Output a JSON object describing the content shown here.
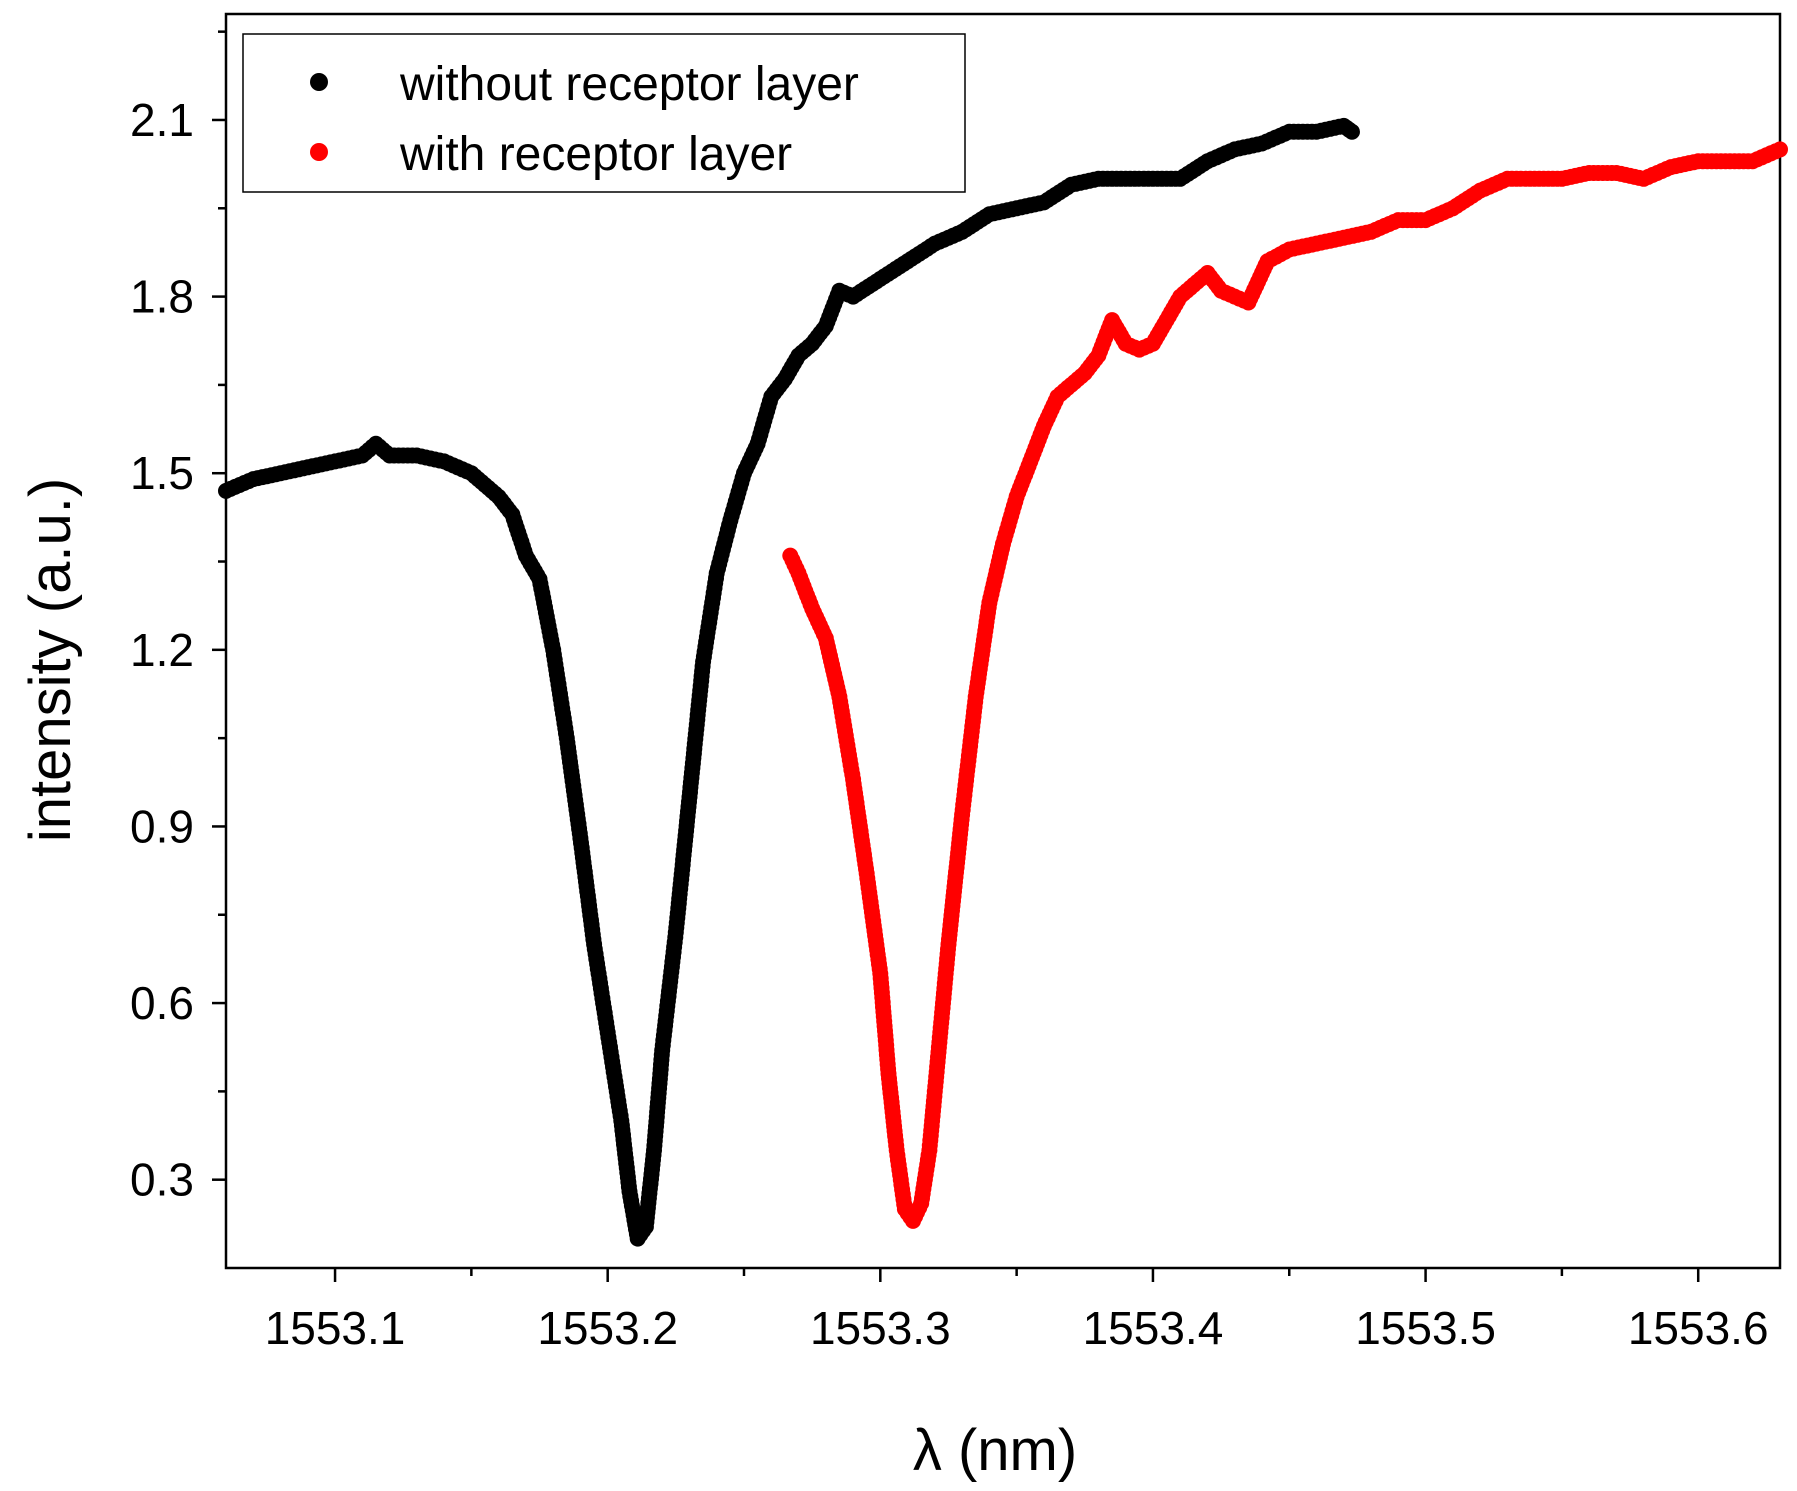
{
  "chart_data": {
    "type": "scatter",
    "xlabel": "λ (nm)",
    "ylabel": "intensity (a.u.)",
    "xlim": [
      1553.06,
      1553.63
    ],
    "ylim": [
      0.15,
      2.28
    ],
    "x_ticks": [
      1553.1,
      1553.2,
      1553.3,
      1553.4,
      1553.5,
      1553.6
    ],
    "x_tick_labels": [
      "1553.1",
      "1553.2",
      "1553.3",
      "1553.4",
      "1553.5",
      "1553.6"
    ],
    "y_ticks": [
      0.3,
      0.6,
      0.9,
      1.2,
      1.5,
      1.8,
      2.1
    ],
    "y_tick_labels": [
      "0.3",
      "0.6",
      "0.9",
      "1.2",
      "1.5",
      "1.8",
      "2.1"
    ],
    "grid": false,
    "legend_position": "top-left",
    "series": [
      {
        "name": "without receptor layer",
        "color": "#000000",
        "x": [
          1553.06,
          1553.07,
          1553.08,
          1553.09,
          1553.1,
          1553.11,
          1553.115,
          1553.12,
          1553.13,
          1553.14,
          1553.15,
          1553.16,
          1553.165,
          1553.17,
          1553.175,
          1553.18,
          1553.185,
          1553.19,
          1553.195,
          1553.2,
          1553.205,
          1553.208,
          1553.211,
          1553.214,
          1553.217,
          1553.22,
          1553.225,
          1553.23,
          1553.235,
          1553.24,
          1553.245,
          1553.25,
          1553.255,
          1553.26,
          1553.265,
          1553.27,
          1553.275,
          1553.28,
          1553.285,
          1553.29,
          1553.3,
          1553.31,
          1553.32,
          1553.33,
          1553.34,
          1553.35,
          1553.36,
          1553.37,
          1553.38,
          1553.39,
          1553.4,
          1553.41,
          1553.42,
          1553.43,
          1553.44,
          1553.45,
          1553.46,
          1553.47,
          1553.473
        ],
        "y": [
          1.47,
          1.49,
          1.5,
          1.51,
          1.52,
          1.53,
          1.55,
          1.53,
          1.53,
          1.52,
          1.5,
          1.46,
          1.43,
          1.36,
          1.32,
          1.2,
          1.05,
          0.88,
          0.7,
          0.55,
          0.4,
          0.28,
          0.2,
          0.22,
          0.35,
          0.52,
          0.72,
          0.95,
          1.18,
          1.33,
          1.42,
          1.5,
          1.55,
          1.63,
          1.66,
          1.7,
          1.72,
          1.75,
          1.81,
          1.8,
          1.83,
          1.86,
          1.89,
          1.91,
          1.94,
          1.95,
          1.96,
          1.99,
          2.0,
          2.0,
          2.0,
          2.0,
          2.03,
          2.05,
          2.06,
          2.08,
          2.08,
          2.09,
          2.08
        ]
      },
      {
        "name": "with receptor layer",
        "color": "#ff0000",
        "x": [
          1553.267,
          1553.27,
          1553.275,
          1553.28,
          1553.285,
          1553.29,
          1553.295,
          1553.3,
          1553.303,
          1553.306,
          1553.309,
          1553.312,
          1553.315,
          1553.318,
          1553.321,
          1553.325,
          1553.33,
          1553.335,
          1553.34,
          1553.345,
          1553.35,
          1553.355,
          1553.36,
          1553.365,
          1553.37,
          1553.375,
          1553.38,
          1553.385,
          1553.39,
          1553.395,
          1553.4,
          1553.405,
          1553.41,
          1553.415,
          1553.42,
          1553.425,
          1553.43,
          1553.435,
          1553.44,
          1553.442,
          1553.45,
          1553.46,
          1553.47,
          1553.48,
          1553.49,
          1553.5,
          1553.51,
          1553.52,
          1553.53,
          1553.54,
          1553.55,
          1553.56,
          1553.57,
          1553.58,
          1553.59,
          1553.6,
          1553.61,
          1553.62,
          1553.63
        ],
        "y": [
          1.36,
          1.33,
          1.27,
          1.22,
          1.12,
          0.98,
          0.82,
          0.65,
          0.48,
          0.35,
          0.25,
          0.23,
          0.26,
          0.35,
          0.5,
          0.7,
          0.92,
          1.12,
          1.28,
          1.38,
          1.46,
          1.52,
          1.58,
          1.63,
          1.65,
          1.67,
          1.7,
          1.76,
          1.72,
          1.71,
          1.72,
          1.76,
          1.8,
          1.82,
          1.84,
          1.81,
          1.8,
          1.79,
          1.84,
          1.86,
          1.88,
          1.89,
          1.9,
          1.91,
          1.93,
          1.93,
          1.95,
          1.98,
          2.0,
          2.0,
          2.0,
          2.01,
          2.01,
          2.0,
          2.02,
          2.03,
          2.03,
          2.03,
          2.05
        ]
      }
    ]
  }
}
